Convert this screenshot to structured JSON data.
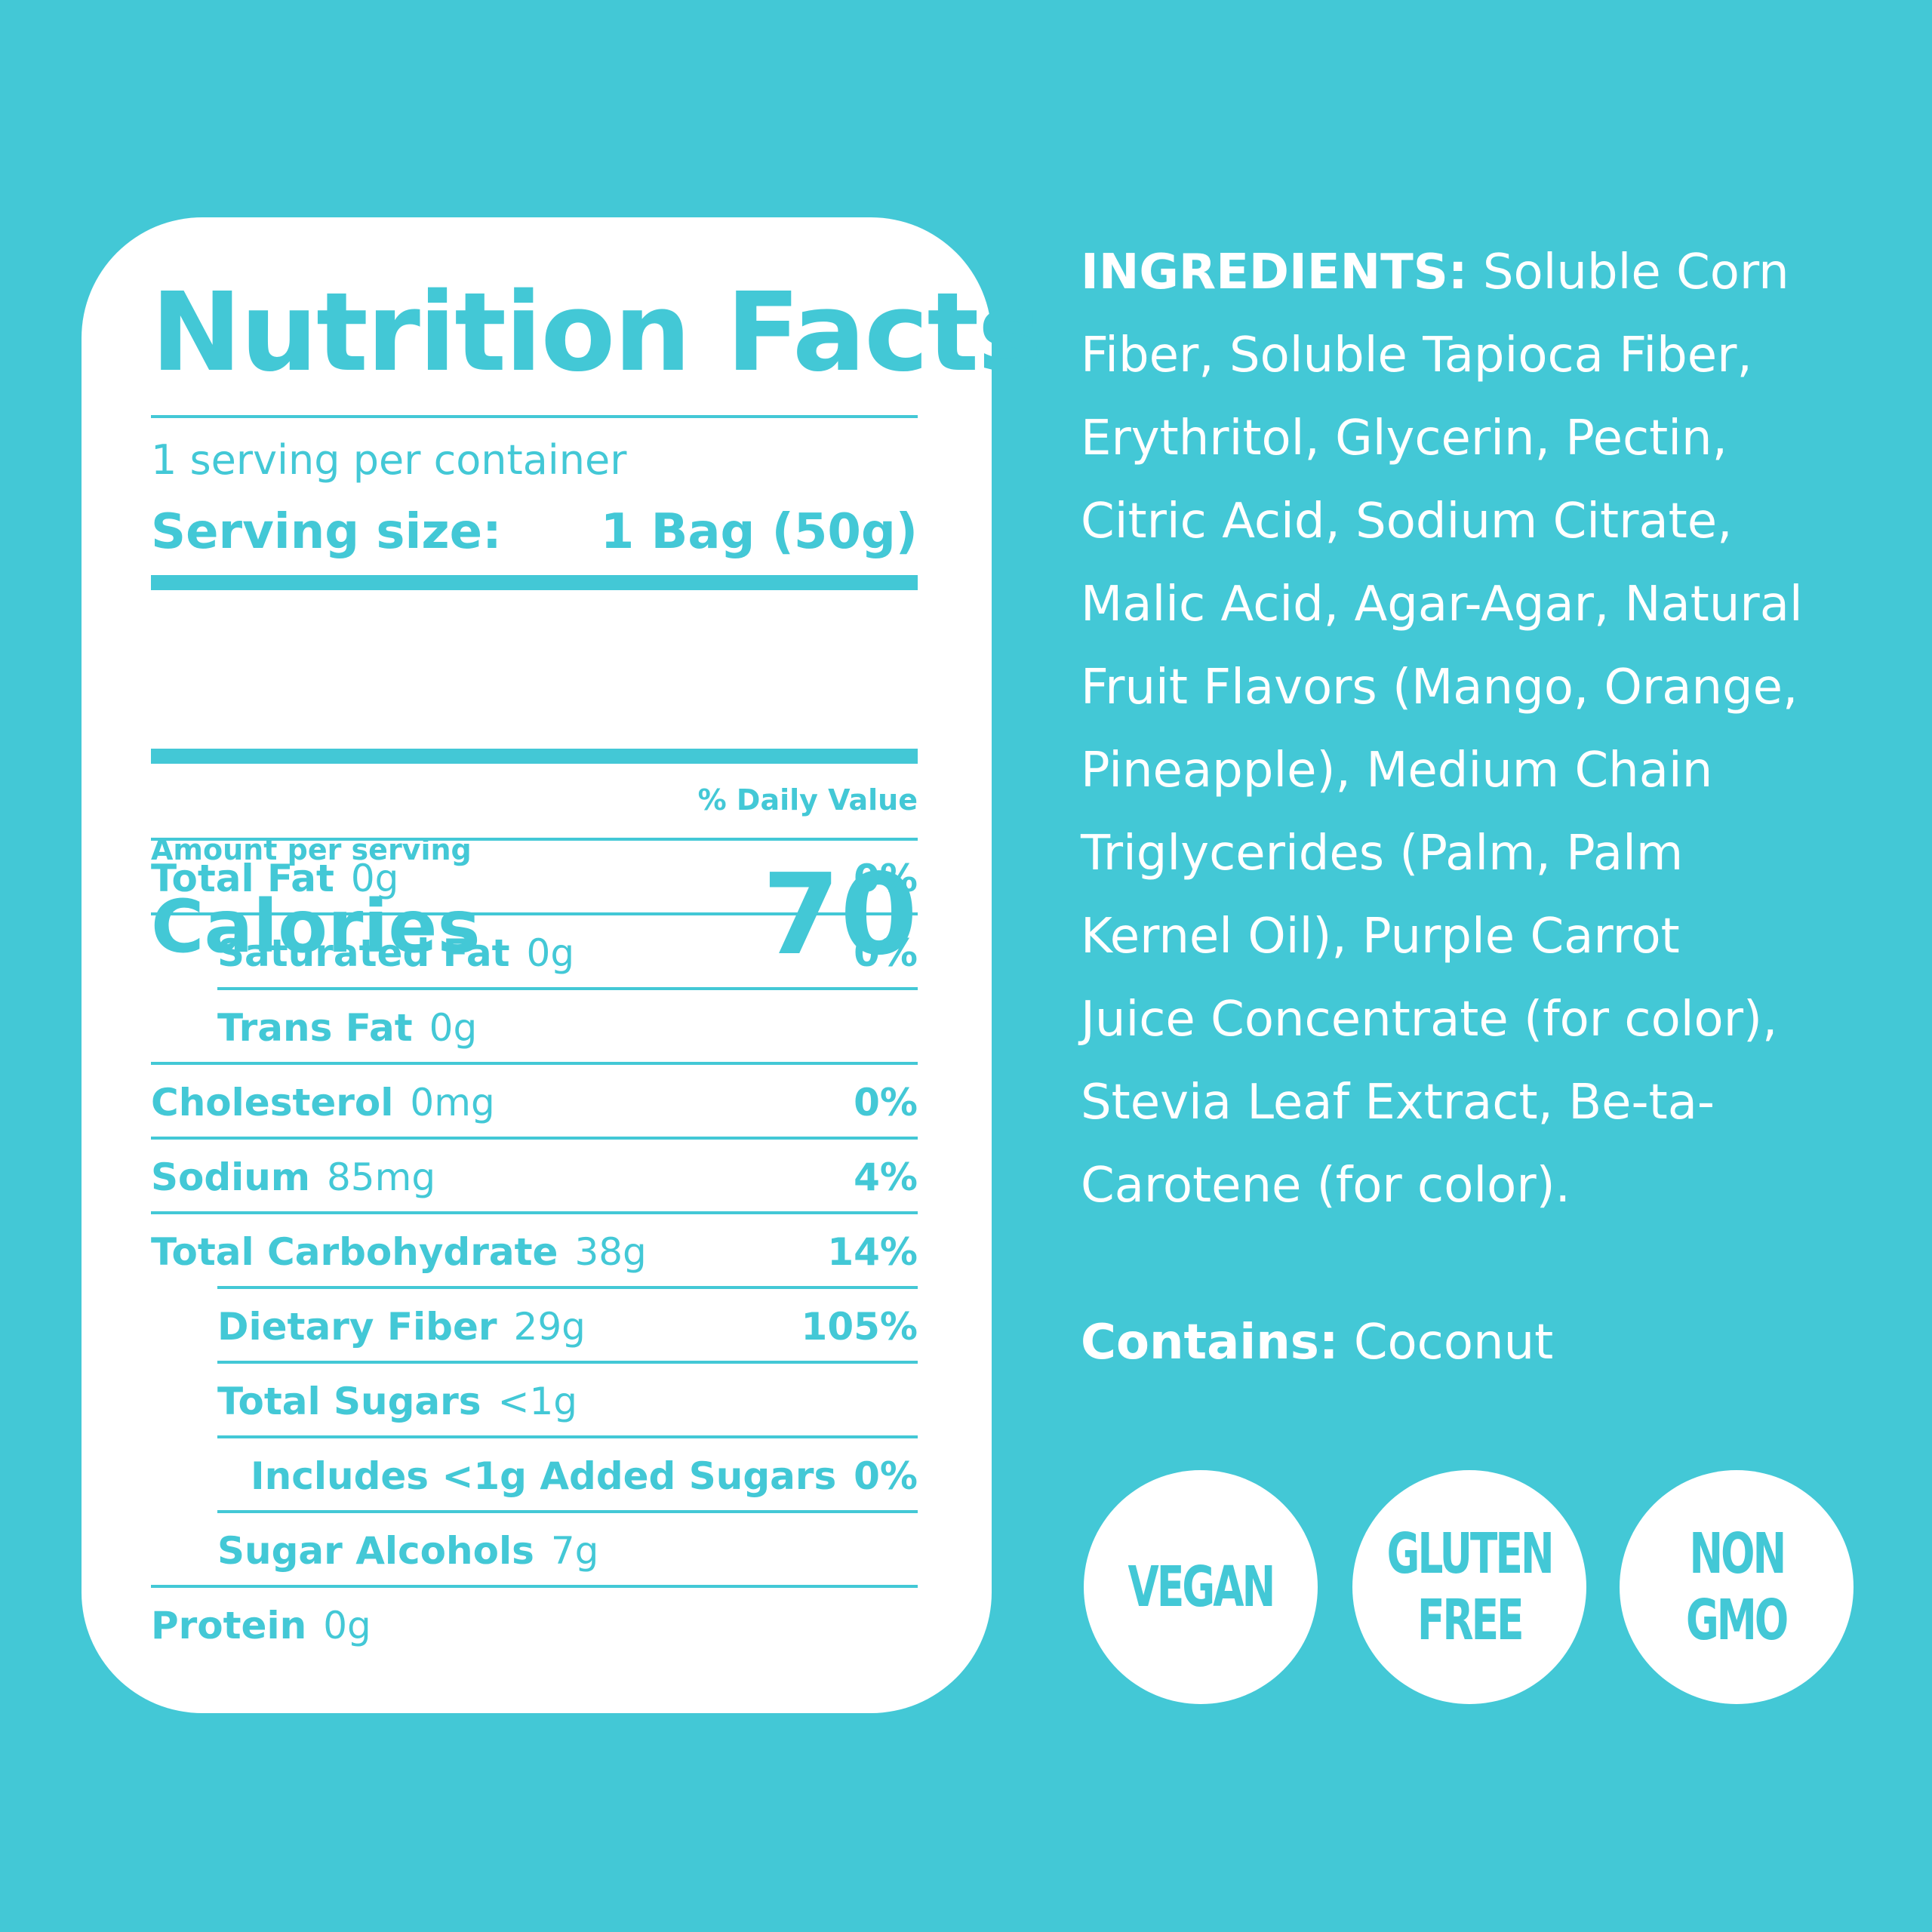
{
  "nutrition": {
    "title": "Nutrition Facts",
    "servings_per_container": "1 serving per container",
    "serving_size_label": "Serving size:",
    "serving_size_value": "1 Bag (50g)",
    "amount_per_serving": "Amount per serving",
    "calories_label": "Calories",
    "calories_value": "70",
    "daily_value_header": "% Daily Value",
    "rows": [
      {
        "label": "Total Fat",
        "amount": "0g",
        "dv": "0%"
      },
      {
        "label": "Saturated Fat",
        "amount": "0g",
        "dv": "0%"
      },
      {
        "label": "Trans Fat",
        "amount": "0g",
        "dv": ""
      },
      {
        "label": "Cholesterol",
        "amount": "0mg",
        "dv": "0%"
      },
      {
        "label": "Sodium",
        "amount": "85mg",
        "dv": "4%"
      },
      {
        "label": "Total Carbohydrate",
        "amount": "38g",
        "dv": "14%"
      },
      {
        "label": "Dietary Fiber",
        "amount": "29g",
        "dv": "105%"
      },
      {
        "label": "Total Sugars",
        "amount": "<1g",
        "dv": ""
      },
      {
        "label": "Includes <1g Added Sugars",
        "amount": "",
        "dv": "0%"
      },
      {
        "label": "Sugar Alcohols",
        "amount": "7g",
        "dv": ""
      },
      {
        "label": "Protein",
        "amount": "0g",
        "dv": ""
      }
    ]
  },
  "ingredients": {
    "heading": "INGREDIENTS:",
    "lines": [
      "Soluble Corn",
      "Fiber, Soluble Tapioca Fiber,",
      "Erythritol, Glycerin, Pectin,",
      "Citric Acid, Sodium Citrate,",
      "Malic Acid, Agar-Agar, Natural",
      "Fruit Flavors (Mango, Orange,",
      "Pineapple), Medium Chain",
      "Triglycerides (Palm, Palm",
      "Kernel Oil), Purple Carrot",
      "Juice Concentrate (for color),",
      "Stevia Leaf Extract, Be-ta-",
      "Carotene (for color)."
    ]
  },
  "contains": {
    "heading": "Contains:",
    "value": "Coconut"
  },
  "badges": {
    "vegan": [
      "VEGAN"
    ],
    "gluten_free": [
      "GLUTEN",
      "FREE"
    ],
    "non_gmo": [
      "NON",
      "GMO"
    ]
  },
  "colors": {
    "background": "#43c8d6",
    "card": "#ffffff",
    "text_on_card": "#43c8d6",
    "text_on_background": "#ffffff"
  }
}
